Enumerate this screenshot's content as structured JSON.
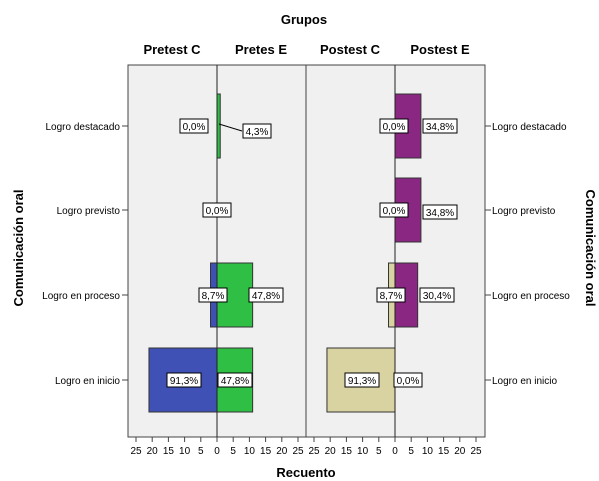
{
  "chart_data": {
    "type": "bar",
    "orientation": "horizontal",
    "title": "Grupos",
    "xlabel": "Recuento",
    "ylabel": "Comunicación oral",
    "ylabel_right": "Comunicación oral",
    "categories": [
      "Logro destacado",
      "Logro previsto",
      "Logro en proceso",
      "Logro en inicio"
    ],
    "xlim": [
      0,
      25
    ],
    "xticks": [
      "25",
      "20",
      "15",
      "10",
      "5",
      "0",
      "5",
      "10",
      "15",
      "20",
      "25"
    ],
    "grid": false,
    "panels": [
      {
        "name": "Pretest C",
        "direction": "left",
        "color": "#3f51b5",
        "values": [
          0,
          0,
          2,
          21
        ],
        "labels": [
          "0,0%",
          "0,0%",
          "8,7%",
          "91,3%"
        ]
      },
      {
        "name": "Pretes E",
        "direction": "right",
        "color": "#2fbf45",
        "values": [
          1,
          0,
          11,
          11
        ],
        "labels": [
          "4,3%",
          "",
          "47,8%",
          "47,8%"
        ]
      },
      {
        "name": "Postest C",
        "direction": "left",
        "color": "#d8d3a0",
        "values": [
          0,
          0,
          2,
          21
        ],
        "labels": [
          "0,0%",
          "0,0%",
          "8,7%",
          "91,3%"
        ]
      },
      {
        "name": "Postest E",
        "direction": "right",
        "color": "#8a2783",
        "values": [
          8,
          8,
          7,
          0
        ],
        "labels": [
          "34,8%",
          "34,8%",
          "30,4%",
          "0,0%"
        ]
      }
    ]
  }
}
